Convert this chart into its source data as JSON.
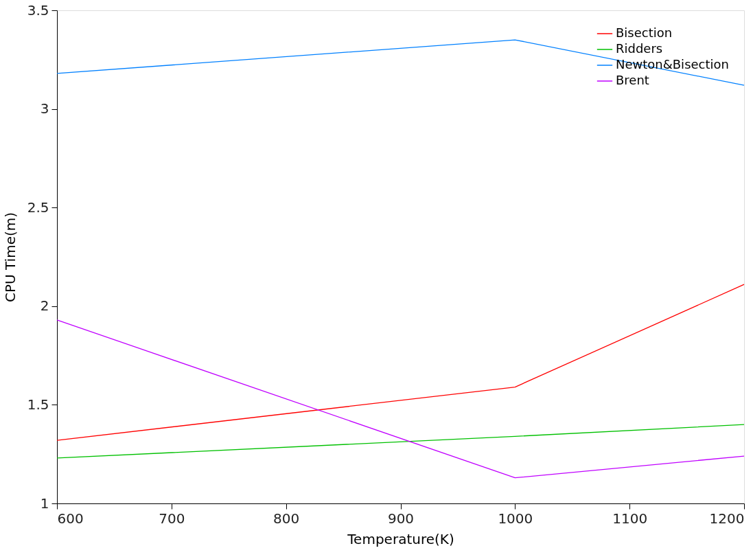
{
  "chart_data": {
    "type": "line",
    "xlabel": "Temperature(K)",
    "ylabel": "CPU Time(m)",
    "x": [
      600,
      1000,
      1200
    ],
    "series": [
      {
        "name": "Bisection",
        "color": "#ff0000",
        "values": [
          1.32,
          1.59,
          2.11
        ]
      },
      {
        "name": "Ridders",
        "color": "#00c000",
        "values": [
          1.23,
          1.34,
          1.4
        ]
      },
      {
        "name": "Newton&Bisection",
        "color": "#0080ff",
        "values": [
          3.18,
          3.35,
          3.12
        ]
      },
      {
        "name": "Brent",
        "color": "#c000ff",
        "values": [
          1.93,
          1.13,
          1.24
        ]
      }
    ],
    "xlim": [
      600,
      1200
    ],
    "xticks": [
      600,
      700,
      800,
      900,
      1000,
      1100,
      1200
    ],
    "ylim": [
      1,
      3.5
    ],
    "yticks": [
      1,
      1.5,
      2,
      2.5,
      3,
      3.5
    ],
    "grid": false,
    "legend": "top right",
    "marker": "none",
    "line_style": "solid"
  }
}
